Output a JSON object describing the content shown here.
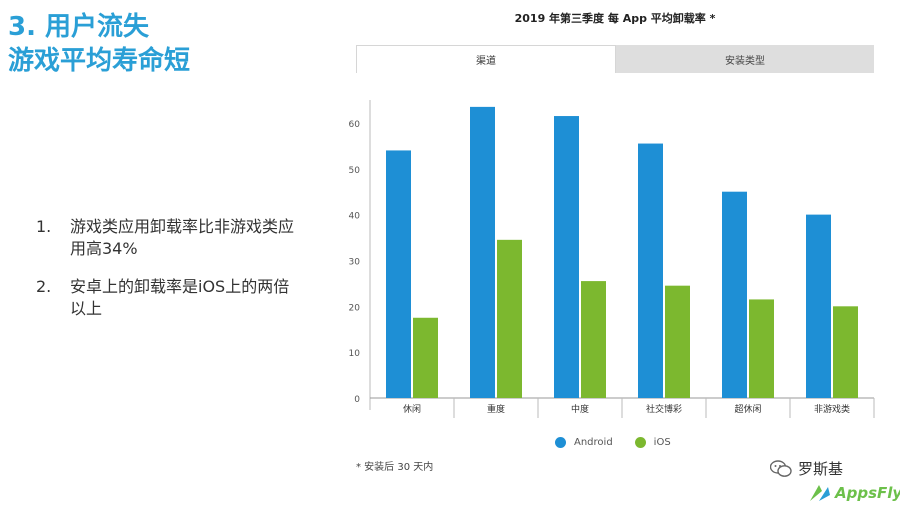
{
  "slide": {
    "title_line1": "3. 用户流失",
    "title_line2": "游戏平均寿命短",
    "points": [
      {
        "num": "1.",
        "text": "游戏类应用卸载率比非游戏类应用高34%"
      },
      {
        "num": "2.",
        "text": "安卓上的卸载率是iOS上的两倍以上"
      }
    ]
  },
  "tabs": [
    {
      "label": "渠道",
      "active": true
    },
    {
      "label": "安装类型",
      "active": false
    }
  ],
  "footnote": "* 安装后 30 天内",
  "watermark": {
    "wechat_name": "罗斯基",
    "wechat_icon": "wechat-icon"
  },
  "brand": {
    "name": "AppsFlyer",
    "logo_icon": "appsflyer-logo-icon"
  },
  "colors": {
    "android": "#1e8fd5",
    "ios": "#7cb82f",
    "title": "#2a9fd6"
  },
  "chart_data": {
    "type": "bar",
    "title": "2019 年第三季度 每 App 平均卸载率 *",
    "categories": [
      "休闲",
      "重度",
      "中度",
      "社交博彩",
      "超休闲",
      "非游戏类"
    ],
    "series": [
      {
        "name": "Android",
        "values": [
          54,
          63.5,
          61.5,
          55.5,
          45,
          40
        ]
      },
      {
        "name": "iOS",
        "values": [
          17.5,
          34.5,
          25.5,
          24.5,
          21.5,
          20
        ]
      }
    ],
    "yticks": [
      0,
      10,
      20,
      30,
      40,
      50,
      60
    ],
    "ylim": [
      0,
      65
    ],
    "grid": false,
    "legend_position": "bottom"
  }
}
